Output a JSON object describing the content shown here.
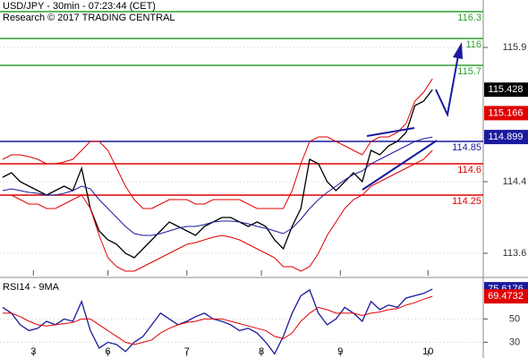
{
  "chart_data": [
    {
      "type": "line",
      "title": "USD/JPY - 30min - 07:23:44 (CET)",
      "subtitle": "Research © 2017 TRADING CENTRAL",
      "x": [
        0,
        1,
        2,
        3,
        4,
        5,
        6,
        7,
        8,
        9,
        10,
        11,
        12,
        13,
        14,
        15,
        16,
        17,
        18,
        19,
        20,
        21,
        22,
        23,
        24,
        25,
        26,
        27,
        28,
        29,
        30,
        31,
        32,
        33,
        34,
        35,
        36,
        37,
        38,
        39,
        40,
        41,
        42,
        43,
        44,
        45,
        46,
        47,
        48,
        49
      ],
      "xlim": [
        0,
        55
      ],
      "xticks": [
        {
          "value": 3.5,
          "label": "3"
        },
        {
          "value": 12,
          "label": "6"
        },
        {
          "value": 21,
          "label": "7"
        },
        {
          "value": 29.5,
          "label": "8"
        },
        {
          "value": 38.5,
          "label": "9"
        },
        {
          "value": 48.5,
          "label": "10"
        }
      ],
      "ylim": [
        113.35,
        116.43
      ],
      "yticks": [
        113.6,
        114.4,
        115.9
      ],
      "series": [
        {
          "color": "#000000",
          "values": [
            114.45,
            114.5,
            114.4,
            114.35,
            114.3,
            114.25,
            114.3,
            114.35,
            114.3,
            114.55,
            114.1,
            113.85,
            113.75,
            113.7,
            113.6,
            113.55,
            113.65,
            113.75,
            113.85,
            113.95,
            113.9,
            113.85,
            113.8,
            113.9,
            113.95,
            114.0,
            114.0,
            113.95,
            113.9,
            113.95,
            113.9,
            113.75,
            113.65,
            113.9,
            114.1,
            114.65,
            114.6,
            114.4,
            114.3,
            114.4,
            114.5,
            114.4,
            114.75,
            114.7,
            114.8,
            114.85,
            114.95,
            115.25,
            115.3,
            115.428
          ]
        },
        {
          "color": "#e00000",
          "values": [
            114.65,
            114.7,
            114.7,
            114.68,
            114.65,
            114.6,
            114.6,
            114.62,
            114.65,
            114.75,
            114.85,
            114.85,
            114.75,
            114.55,
            114.35,
            114.2,
            114.1,
            114.1,
            114.15,
            114.2,
            114.2,
            114.2,
            114.15,
            114.15,
            114.2,
            114.2,
            114.2,
            114.2,
            114.15,
            114.1,
            114.1,
            114.1,
            114.1,
            114.3,
            114.6,
            114.85,
            114.9,
            114.9,
            114.85,
            114.8,
            114.75,
            114.7,
            114.85,
            114.9,
            114.9,
            114.95,
            115.05,
            115.3,
            115.4,
            115.55
          ]
        },
        {
          "color": "#e00000",
          "values": [
            114.25,
            114.25,
            114.2,
            114.15,
            114.15,
            114.1,
            114.1,
            114.15,
            114.2,
            114.25,
            114.1,
            113.8,
            113.55,
            113.45,
            113.4,
            113.4,
            113.45,
            113.5,
            113.55,
            113.6,
            113.65,
            113.7,
            113.72,
            113.75,
            113.78,
            113.8,
            113.78,
            113.75,
            113.7,
            113.65,
            113.6,
            113.55,
            113.45,
            113.45,
            113.4,
            113.45,
            113.6,
            113.8,
            113.95,
            114.1,
            114.2,
            114.25,
            114.35,
            114.4,
            114.45,
            114.5,
            114.55,
            114.6,
            114.65,
            114.75
          ]
        },
        {
          "color": "#1a1a9e",
          "values": [
            114.3,
            114.32,
            114.3,
            114.28,
            114.27,
            114.25,
            114.25,
            114.27,
            114.3,
            114.35,
            114.32,
            114.2,
            114.1,
            114.0,
            113.9,
            113.82,
            113.8,
            113.8,
            113.82,
            113.85,
            113.88,
            113.9,
            113.9,
            113.92,
            113.95,
            113.96,
            113.96,
            113.95,
            113.93,
            113.9,
            113.88,
            113.85,
            113.82,
            113.88,
            113.98,
            114.1,
            114.2,
            114.28,
            114.35,
            114.42,
            114.48,
            114.52,
            114.6,
            114.65,
            114.7,
            114.75,
            114.8,
            114.85,
            114.88,
            114.899
          ]
        }
      ],
      "markers": [
        {
          "value": 115.166,
          "color": "#e00000"
        }
      ],
      "levels": [
        {
          "value": 116.3,
          "color": "#2e9e2e"
        },
        {
          "value": 116,
          "color": "#2e9e2e"
        },
        {
          "value": 115.7,
          "color": "#2e9e2e"
        },
        {
          "value": 114.85,
          "color": "#1a1a9e"
        },
        {
          "value": 114.6,
          "color": "#e00000"
        },
        {
          "value": 114.25,
          "color": "#e00000"
        }
      ]
    },
    {
      "type": "line",
      "title": "RSI14 - 9MA",
      "ylim": [
        18,
        83.4
      ],
      "yticks": [
        30,
        50
      ],
      "series": [
        {
          "color": "#1a1a9e",
          "values": [
            60,
            55,
            45,
            40,
            42,
            48,
            45,
            50,
            48,
            65,
            40,
            25,
            30,
            28,
            22,
            30,
            35,
            45,
            55,
            50,
            45,
            48,
            52,
            55,
            50,
            48,
            45,
            40,
            42,
            38,
            30,
            20,
            35,
            55,
            70,
            75,
            55,
            45,
            50,
            60,
            55,
            48,
            65,
            58,
            62,
            60,
            68,
            70,
            72,
            75.6176
          ]
        },
        {
          "color": "#e00000",
          "values": [
            55,
            55,
            52,
            48,
            45,
            44,
            45,
            46,
            47,
            50,
            50,
            45,
            40,
            35,
            30,
            28,
            30,
            32,
            38,
            42,
            45,
            47,
            48,
            50,
            50,
            50,
            48,
            46,
            44,
            42,
            40,
            35,
            33,
            38,
            48,
            55,
            60,
            58,
            55,
            55,
            55,
            53,
            55,
            56,
            58,
            59,
            62,
            64,
            67,
            69.4732
          ]
        }
      ]
    }
  ]
}
